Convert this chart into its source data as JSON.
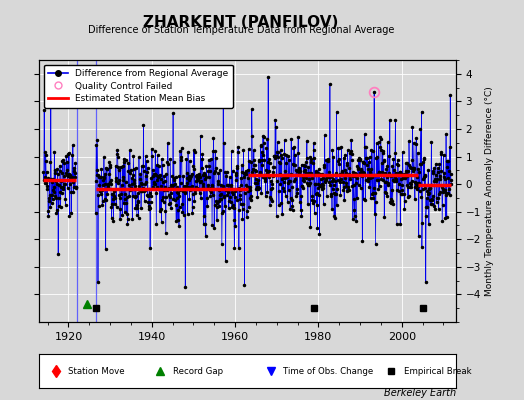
{
  "title": "ZHARKENT (PANFILOV)",
  "subtitle": "Difference of Station Temperature Data from Regional Average",
  "ylabel_right": "Monthly Temperature Anomaly Difference (°C)",
  "bg_color": "#d8d8d8",
  "plot_bg_color": "#d8d8d8",
  "ylim": [
    -5,
    4.5
  ],
  "xlim": [
    1913,
    2013
  ],
  "xticks": [
    1920,
    1940,
    1960,
    1980,
    2000
  ],
  "yticks_right": [
    -4,
    -3,
    -2,
    -1,
    0,
    1,
    2,
    3,
    4
  ],
  "seed": 42,
  "start_year": 1914.0,
  "gap_start": 1922.0,
  "gap_end": 1926.5,
  "end_year": 2011.9,
  "bias_segments": [
    {
      "start": 1914.0,
      "end": 1921.9,
      "bias": 0.15
    },
    {
      "start": 1926.5,
      "end": 1963.0,
      "bias": -0.18
    },
    {
      "start": 1963.0,
      "end": 1979.0,
      "bias": 0.32
    },
    {
      "start": 1979.0,
      "end": 2004.0,
      "bias": 0.32
    },
    {
      "start": 2004.0,
      "end": 2011.9,
      "bias": -0.05
    }
  ],
  "obs_change_lines": [
    1922.0,
    1926.5
  ],
  "record_gaps": [
    1924.5
  ],
  "empirical_breaks": [
    1926.5,
    1979.0,
    2005.0
  ],
  "station_moves": [],
  "qc_failed": [
    1993.4
  ],
  "qc_value": 3.35,
  "line_color": "#0000ee",
  "bias_color": "#ff0000",
  "qc_color": "#ff80c0",
  "gap_color": "#008000",
  "break_color": "#000000",
  "obs_change_color": "#5555ff",
  "station_move_color": "#ff0000",
  "watermark": "Berkeley Earth"
}
